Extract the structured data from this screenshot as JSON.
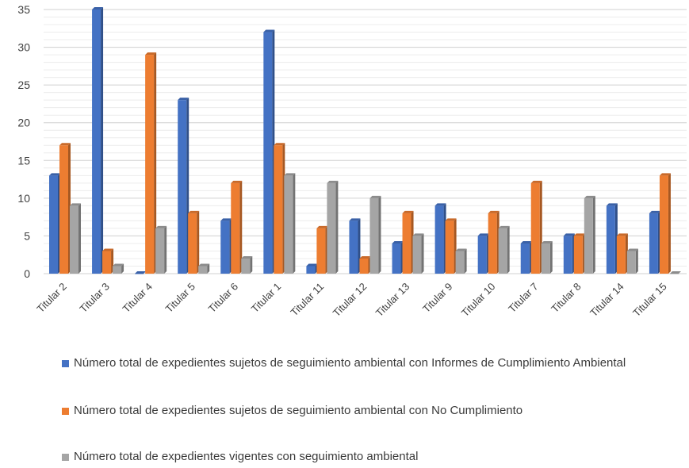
{
  "chart_data": {
    "type": "bar",
    "categories": [
      "Titular 2",
      "Titular 3",
      "Titular 4",
      "Titular 5",
      "Titular 6",
      "Titular 1",
      "Titular 11",
      "Titular 12",
      "Titular 13",
      "Titular 9",
      "Titular 10",
      "Titular 7",
      "Titular 8",
      "Titular 14",
      "Titular 15"
    ],
    "series": [
      {
        "name": "Número total de expedientes sujetos de seguimiento ambiental con Informes de Cumplimiento Ambiental",
        "color": "#4472C4",
        "values": [
          13,
          35,
          0,
          23,
          7,
          32,
          1,
          7,
          4,
          9,
          5,
          4,
          5,
          9,
          8
        ]
      },
      {
        "name": "Número total de expedientes sujetos de seguimiento ambiental con No Cumplimiento",
        "color": "#ED7D31",
        "values": [
          17,
          3,
          29,
          8,
          12,
          17,
          6,
          2,
          8,
          7,
          8,
          12,
          5,
          5,
          13
        ]
      },
      {
        "name": "Número total de expedientes vigentes con seguimiento ambiental",
        "color": "#A5A5A5",
        "values": [
          9,
          1,
          6,
          1,
          2,
          13,
          12,
          10,
          5,
          3,
          6,
          4,
          10,
          3,
          0
        ]
      }
    ],
    "y_ticks": [
      "0",
      "5",
      "10",
      "15",
      "20",
      "25",
      "30",
      "35"
    ],
    "ylim": [
      0,
      35
    ],
    "grid": true,
    "legend_position": "bottom"
  }
}
